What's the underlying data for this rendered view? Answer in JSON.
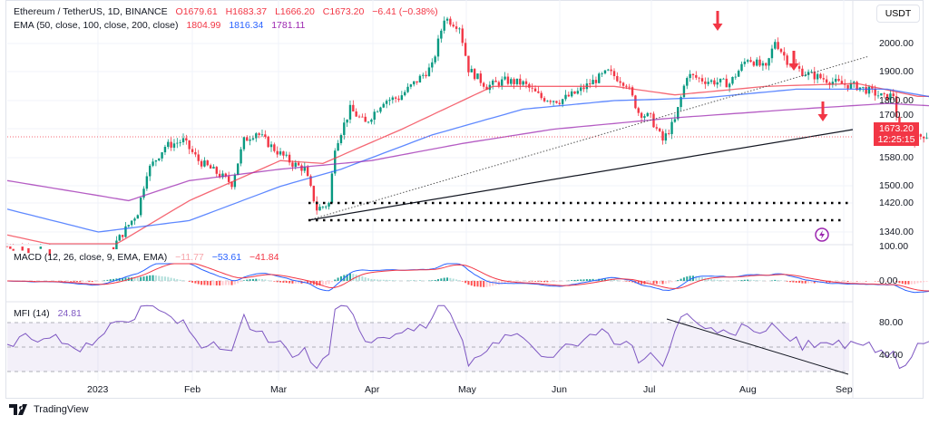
{
  "header": {
    "symbol": "Ethereum / TetherUS, 1D, BINANCE",
    "open": "O1679.61",
    "high": "H1683.37",
    "low": "L1666.20",
    "close": "C1673.20",
    "change": "−6.41 (−0.38%)"
  },
  "ema": {
    "label": "EMA (50, close, 100, close, 200, close)",
    "v50": "1804.99",
    "v100": "1816.34",
    "v200": "1781.11"
  },
  "macd": {
    "label": "MACD (12, 26, close, 9, EMA, EMA)",
    "hist": "−11.77",
    "macd": "−53.61",
    "signal": "−41.84"
  },
  "mfi": {
    "label": "MFI (14)",
    "value": "24.81"
  },
  "currency": "USDT",
  "last_price": "1673.20",
  "countdown": "12:25:15",
  "footer": "TradingView",
  "colors": {
    "up": "#089981",
    "down": "#f23645",
    "ema50": "#f23645",
    "ema100": "#2962ff",
    "ema200": "#9c27b0",
    "mfi": "#7e57c2"
  },
  "chart_data": {
    "type": "candlestick",
    "title": "Ethereum / TetherUS, 1D, BINANCE",
    "price_ticks": [
      "2000.00",
      "1900.00",
      "1800.00",
      "1700.00",
      "1580.00",
      "1500.00",
      "1420.00",
      "1340.00"
    ],
    "macd_ticks": [
      "100.00",
      "0.00"
    ],
    "mfi_ticks": [
      "80.00",
      "40.00"
    ],
    "x_ticks": [
      "2023",
      "Feb",
      "Mar",
      "Apr",
      "May",
      "Jun",
      "Jul",
      "Aug",
      "Sep"
    ],
    "close_keypoints_day_price": [
      [
        0,
        1290
      ],
      [
        14,
        1270
      ],
      [
        28,
        1200
      ],
      [
        33,
        1260
      ],
      [
        43,
        1410
      ],
      [
        46,
        1550
      ],
      [
        52,
        1640
      ],
      [
        58,
        1660
      ],
      [
        63,
        1590
      ],
      [
        70,
        1540
      ],
      [
        74,
        1510
      ],
      [
        78,
        1660
      ],
      [
        82,
        1690
      ],
      [
        88,
        1630
      ],
      [
        94,
        1580
      ],
      [
        98,
        1560
      ],
      [
        102,
        1420
      ],
      [
        106,
        1440
      ],
      [
        108,
        1640
      ],
      [
        113,
        1770
      ],
      [
        118,
        1720
      ],
      [
        124,
        1800
      ],
      [
        129,
        1810
      ],
      [
        134,
        1860
      ],
      [
        140,
        1920
      ],
      [
        144,
        2090
      ],
      [
        149,
        2060
      ],
      [
        152,
        1910
      ],
      [
        158,
        1850
      ],
      [
        164,
        1870
      ],
      [
        170,
        1860
      ],
      [
        176,
        1810
      ],
      [
        182,
        1800
      ],
      [
        188,
        1830
      ],
      [
        192,
        1860
      ],
      [
        198,
        1900
      ],
      [
        204,
        1860
      ],
      [
        208,
        1760
      ],
      [
        212,
        1740
      ],
      [
        216,
        1660
      ],
      [
        220,
        1730
      ],
      [
        224,
        1890
      ],
      [
        230,
        1870
      ],
      [
        238,
        1860
      ],
      [
        244,
        1950
      ],
      [
        250,
        1910
      ],
      [
        253,
        2010
      ],
      [
        257,
        1940
      ],
      [
        262,
        1900
      ],
      [
        268,
        1880
      ],
      [
        274,
        1860
      ],
      [
        280,
        1850
      ],
      [
        285,
        1830
      ],
      [
        289,
        1810
      ],
      [
        292,
        1820
      ],
      [
        294,
        1680
      ],
      [
        298,
        1660
      ],
      [
        302,
        1680
      ],
      [
        306,
        1673
      ]
    ],
    "ema50_keypoints": [
      [
        0,
        1330
      ],
      [
        30,
        1260
      ],
      [
        60,
        1450
      ],
      [
        90,
        1590
      ],
      [
        104,
        1580
      ],
      [
        130,
        1700
      ],
      [
        160,
        1850
      ],
      [
        200,
        1850
      ],
      [
        220,
        1820
      ],
      [
        250,
        1850
      ],
      [
        280,
        1860
      ],
      [
        300,
        1815
      ]
    ],
    "ema100_keypoints": [
      [
        0,
        1420
      ],
      [
        30,
        1340
      ],
      [
        60,
        1380
      ],
      [
        90,
        1500
      ],
      [
        110,
        1560
      ],
      [
        140,
        1680
      ],
      [
        170,
        1770
      ],
      [
        200,
        1800
      ],
      [
        230,
        1810
      ],
      [
        260,
        1840
      ],
      [
        290,
        1840
      ],
      [
        306,
        1810
      ]
    ],
    "ema200_keypoints": [
      [
        0,
        1520
      ],
      [
        40,
        1450
      ],
      [
        60,
        1520
      ],
      [
        90,
        1560
      ],
      [
        120,
        1590
      ],
      [
        150,
        1650
      ],
      [
        180,
        1700
      ],
      [
        220,
        1740
      ],
      [
        260,
        1770
      ],
      [
        290,
        1790
      ],
      [
        306,
        1781
      ]
    ]
  }
}
